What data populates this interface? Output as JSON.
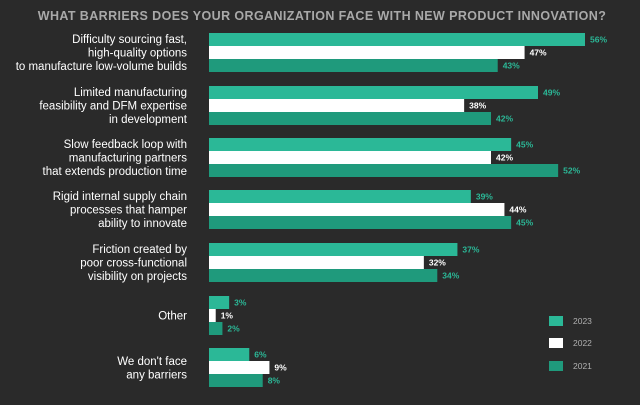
{
  "chart_data": {
    "type": "bar",
    "orientation": "horizontal",
    "title": "WHAT BARRIERS DOES YOUR ORGANIZATION FACE WITH NEW PRODUCT INNOVATION?",
    "categories": [
      [
        "Difficulty sourcing fast,",
        "high-quality options",
        "to manufacture low-volume builds"
      ],
      [
        "Limited manufacturing",
        "feasibility and DFM expertise",
        "in development"
      ],
      [
        "Slow feedback loop with",
        "manufacturing partners",
        "that extends production time"
      ],
      [
        "Rigid internal supply chain",
        "processes  that hamper",
        "ability to innovate"
      ],
      [
        "Friction created by",
        "poor cross-functional",
        "visibility on projects"
      ],
      [
        "Other"
      ],
      [
        "We don't face",
        "any barriers"
      ]
    ],
    "series": [
      {
        "name": "2023",
        "color": "#2bb897",
        "values": [
          56,
          49,
          45,
          39,
          37,
          3,
          6
        ]
      },
      {
        "name": "2022",
        "color": "#ffffff",
        "values": [
          47,
          38,
          42,
          44,
          32,
          1,
          9
        ]
      },
      {
        "name": "2021",
        "color": "#1f9a7c",
        "values": [
          43,
          42,
          52,
          45,
          34,
          2,
          8
        ]
      }
    ],
    "value_suffix": "%",
    "legend_placement": "bottom-right",
    "grid": false,
    "xlim": [
      0,
      56
    ]
  }
}
